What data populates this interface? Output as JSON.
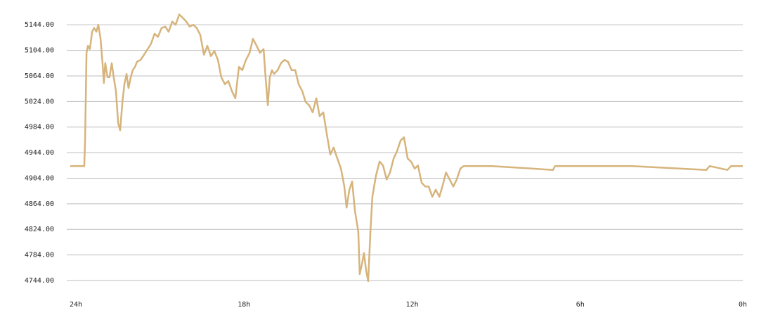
{
  "chart_data": {
    "type": "line",
    "x": [
      24.0,
      23.5,
      23.47,
      23.42,
      23.37,
      23.3,
      23.22,
      23.15,
      23.07,
      23.0,
      22.92,
      22.85,
      22.8,
      22.75,
      22.67,
      22.6,
      22.52,
      22.45,
      22.37,
      22.29,
      22.22,
      22.14,
      22.07,
      21.99,
      21.92,
      21.84,
      21.77,
      21.69,
      21.62,
      21.49,
      21.37,
      21.24,
      21.12,
      20.99,
      20.87,
      20.74,
      20.61,
      20.49,
      20.36,
      20.24,
      20.11,
      19.99,
      19.86,
      19.74,
      19.61,
      19.49,
      19.36,
      19.23,
      19.11,
      18.98,
      18.86,
      18.73,
      18.61,
      18.48,
      18.36,
      18.23,
      18.11,
      17.98,
      17.86,
      17.73,
      17.6,
      17.48,
      17.35,
      17.23,
      17.1,
      17.03,
      16.95,
      16.88,
      16.8,
      16.73,
      16.6,
      16.48,
      16.35,
      16.23,
      16.1,
      15.97,
      15.85,
      15.72,
      15.6,
      15.47,
      15.35,
      15.22,
      15.1,
      14.97,
      14.85,
      14.72,
      14.6,
      14.47,
      14.34,
      14.22,
      14.14,
      14.04,
      13.94,
      13.84,
      13.72,
      13.67,
      13.59,
      13.52,
      13.44,
      13.37,
      13.29,
      13.22,
      13.09,
      12.96,
      12.84,
      12.71,
      12.59,
      12.46,
      12.34,
      12.21,
      12.09,
      11.96,
      11.84,
      11.71,
      11.59,
      11.46,
      11.33,
      11.21,
      11.08,
      10.96,
      10.83,
      10.72,
      10.59,
      10.46,
      10.33,
      10.21,
      10.08,
      9.96,
      8.95,
      6.77,
      6.7,
      3.94,
      1.3,
      1.18,
      0.55,
      0.42,
      0.0
    ],
    "series": [
      {
        "color": "#d6b47c",
        "values": [
          4923,
          4923,
          4963,
          5100,
          5111,
          5106,
          5133,
          5139,
          5133,
          5144,
          5122,
          5084,
          5053,
          5084,
          5062,
          5062,
          5084,
          5062,
          5040,
          4990,
          4979,
          5023,
          5051,
          5067,
          5045,
          5062,
          5073,
          5078,
          5086,
          5089,
          5097,
          5106,
          5114,
          5130,
          5125,
          5139,
          5141,
          5133,
          5149,
          5144,
          5160,
          5155,
          5149,
          5141,
          5144,
          5139,
          5128,
          5097,
          5111,
          5095,
          5103,
          5089,
          5062,
          5051,
          5056,
          5040,
          5029,
          5078,
          5073,
          5089,
          5100,
          5122,
          5111,
          5100,
          5106,
          5062,
          5018,
          5062,
          5073,
          5067,
          5073,
          5084,
          5089,
          5086,
          5073,
          5073,
          5051,
          5040,
          5023,
          5018,
          5007,
          5029,
          5001,
          5007,
          4974,
          4941,
          4952,
          4935,
          4919,
          4891,
          4858,
          4886,
          4899,
          4853,
          4820,
          4754,
          4770,
          4787,
          4759,
          4743,
          4820,
          4875,
          4908,
          4930,
          4924,
          4902,
          4913,
          4935,
          4946,
          4963,
          4968,
          4935,
          4930,
          4919,
          4924,
          4897,
          4891,
          4891,
          4875,
          4886,
          4875,
          4891,
          4913,
          4902,
          4891,
          4902,
          4919,
          4923,
          4923,
          4917,
          4923,
          4923,
          4917,
          4923,
          4917,
          4923,
          4923
        ]
      }
    ],
    "xlim": [
      24,
      0
    ],
    "xticks": [
      {
        "value": 24,
        "label": "24h"
      },
      {
        "value": 18,
        "label": "18h"
      },
      {
        "value": 12,
        "label": "12h"
      },
      {
        "value": 6,
        "label": "6h"
      },
      {
        "value": 0,
        "label": "0h"
      }
    ],
    "ylim": [
      4744,
      5164
    ],
    "yticks": [
      {
        "value": 4744,
        "label": "4744.00"
      },
      {
        "value": 4784,
        "label": "4784.00"
      },
      {
        "value": 4824,
        "label": "4824.00"
      },
      {
        "value": 4864,
        "label": "4864.00"
      },
      {
        "value": 4904,
        "label": "4904.00"
      },
      {
        "value": 4944,
        "label": "4944.00"
      },
      {
        "value": 4984,
        "label": "4984.00"
      },
      {
        "value": 5024,
        "label": "5024.00"
      },
      {
        "value": 5064,
        "label": "5064.00"
      },
      {
        "value": 5104,
        "label": "5104.00"
      },
      {
        "value": 5144,
        "label": "5144.00"
      }
    ],
    "grid": true
  }
}
